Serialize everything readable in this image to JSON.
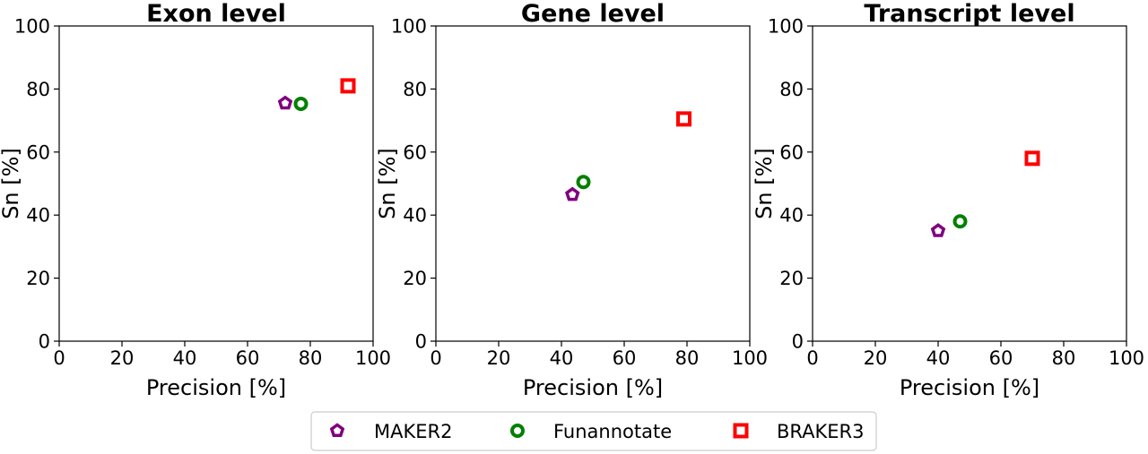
{
  "legend": {
    "placement": "bottom-center",
    "entries": [
      {
        "name": "MAKER2",
        "marker": "pentagon",
        "color": "#800080"
      },
      {
        "name": "Funannotate",
        "marker": "circle",
        "color": "#008000"
      },
      {
        "name": "BRAKER3",
        "marker": "square",
        "color": "#ff0000"
      }
    ]
  },
  "chart_data": [
    {
      "type": "scatter",
      "title": "Exon level",
      "xlabel": "Precision [%]",
      "ylabel": "Sn [%]",
      "xlim": [
        0,
        100
      ],
      "ylim": [
        0,
        100
      ],
      "xticks": [
        0,
        20,
        40,
        60,
        80,
        100
      ],
      "yticks": [
        0,
        20,
        40,
        60,
        80,
        100
      ],
      "grid": false,
      "series": [
        {
          "name": "MAKER2",
          "x": [
            72
          ],
          "y": [
            75.5
          ]
        },
        {
          "name": "Funannotate",
          "x": [
            77
          ],
          "y": [
            75.3
          ]
        },
        {
          "name": "BRAKER3",
          "x": [
            92
          ],
          "y": [
            81
          ]
        }
      ]
    },
    {
      "type": "scatter",
      "title": "Gene level",
      "xlabel": "Precision [%]",
      "ylabel": "Sn [%]",
      "xlim": [
        0,
        100
      ],
      "ylim": [
        0,
        100
      ],
      "xticks": [
        0,
        20,
        40,
        60,
        80,
        100
      ],
      "yticks": [
        0,
        20,
        40,
        60,
        80,
        100
      ],
      "grid": false,
      "series": [
        {
          "name": "MAKER2",
          "x": [
            43.5
          ],
          "y": [
            46.5
          ]
        },
        {
          "name": "Funannotate",
          "x": [
            47
          ],
          "y": [
            50.5
          ]
        },
        {
          "name": "BRAKER3",
          "x": [
            79
          ],
          "y": [
            70.5
          ]
        }
      ]
    },
    {
      "type": "scatter",
      "title": "Transcript level",
      "xlabel": "Precision [%]",
      "ylabel": "Sn [%]",
      "xlim": [
        0,
        100
      ],
      "ylim": [
        0,
        100
      ],
      "xticks": [
        0,
        20,
        40,
        60,
        80,
        100
      ],
      "yticks": [
        0,
        20,
        40,
        60,
        80,
        100
      ],
      "grid": false,
      "series": [
        {
          "name": "MAKER2",
          "x": [
            40
          ],
          "y": [
            35
          ]
        },
        {
          "name": "Funannotate",
          "x": [
            47
          ],
          "y": [
            38
          ]
        },
        {
          "name": "BRAKER3",
          "x": [
            70
          ],
          "y": [
            58
          ]
        }
      ]
    }
  ]
}
